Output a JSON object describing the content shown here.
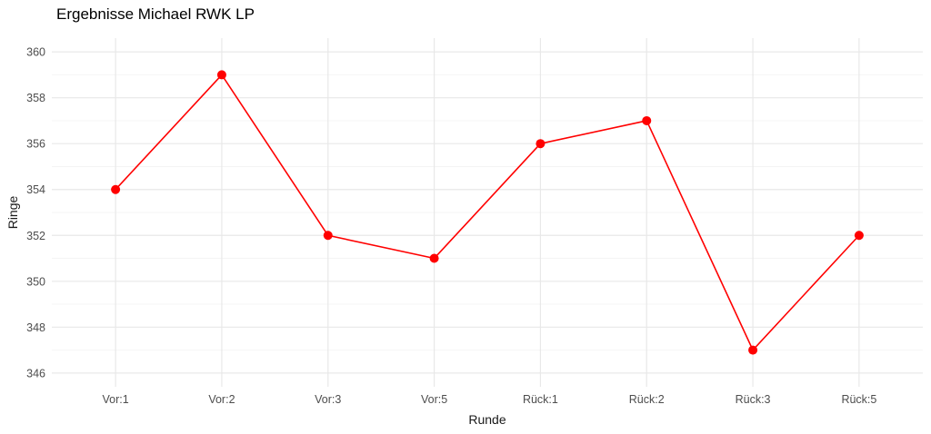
{
  "chart_data": {
    "type": "line",
    "title": "Ergebnisse Michael RWK LP",
    "xlabel": "Runde",
    "ylabel": "Ringe",
    "categories": [
      "Vor:1",
      "Vor:2",
      "Vor:3",
      "Vor:5",
      "Rück:1",
      "Rück:2",
      "Rück:3",
      "Rück:5"
    ],
    "series": [
      {
        "name": "Ringe",
        "values": [
          354,
          359,
          352,
          351,
          356,
          357,
          347,
          352
        ]
      }
    ],
    "ylim": [
      345.4,
      360.6
    ],
    "yticks_major": [
      346,
      348,
      350,
      352,
      354,
      356,
      358,
      360
    ],
    "yticks_minor": [
      347,
      349,
      351,
      353,
      355,
      357,
      359
    ],
    "grid": "on",
    "legend_position": "none",
    "colors": {
      "line": "#ff0000",
      "point": "#ff0000",
      "grid_major": "#e8e8e8",
      "grid_minor": "#f4f4f4",
      "tick_label": "#4d4d4d",
      "title": "#000000",
      "axis_title": "#1a1a1a",
      "background": "#ffffff"
    }
  }
}
